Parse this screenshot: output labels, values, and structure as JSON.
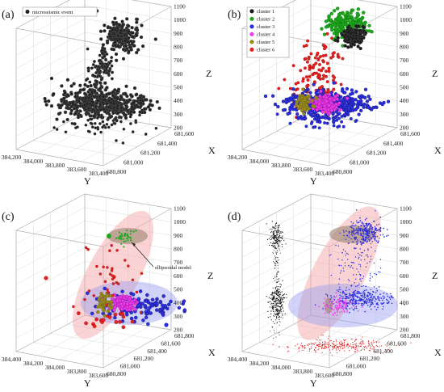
{
  "chart_data": [
    {
      "panel": "(a)",
      "type": "scatter",
      "z_axis": {
        "label": "Z",
        "ticks": [
          "200",
          "300",
          "400",
          "500",
          "600",
          "700",
          "800",
          "900",
          "1000",
          "1100"
        ]
      },
      "x_axis": {
        "label": "X",
        "ticks": [
          "681,600",
          "681,400",
          "681,200",
          "681,000",
          "680,800"
        ]
      },
      "y_axis": {
        "label": "Y",
        "ticks": [
          "384,200",
          "384,000",
          "383,800",
          "383,600",
          "383,400"
        ]
      },
      "legend": {
        "placement": "top-left",
        "entries": [
          {
            "label": "microseismic event",
            "color": "#222222"
          }
        ]
      },
      "series": [
        {
          "name": "microseismic event",
          "color": "#222222",
          "clusters": [
            {
              "x": 681200,
              "y": 383850,
              "z": 980,
              "n": 260
            },
            {
              "x": 681200,
              "y": 383860,
              "z": 800,
              "n": 140
            },
            {
              "x": 681150,
              "y": 383900,
              "z": 440,
              "n": 420
            }
          ]
        }
      ]
    },
    {
      "panel": "(b)",
      "type": "scatter",
      "z_axis": {
        "label": "Z",
        "ticks": [
          "200",
          "300",
          "400",
          "500",
          "600",
          "700",
          "800",
          "900",
          "1000",
          "1100"
        ]
      },
      "x_axis": {
        "label": "X",
        "ticks": [
          "681,600",
          "681,400",
          "681,200",
          "681,000",
          "680,800"
        ]
      },
      "y_axis": {
        "label": "Y",
        "ticks": [
          "384,200",
          "384,000",
          "383,800",
          "383,600",
          "383,400"
        ]
      },
      "legend": {
        "placement": "top-left",
        "entries": [
          {
            "label": "cluster 1",
            "color": "#1a1a1a"
          },
          {
            "label": "cluster 2",
            "color": "#1fa81f"
          },
          {
            "label": "cluster 3",
            "color": "#2a2ee0"
          },
          {
            "label": "cluster 4",
            "color": "#e83ee8"
          },
          {
            "label": "cluster 5",
            "color": "#9a8a10"
          },
          {
            "label": "cluster 6",
            "color": "#e32222"
          }
        ]
      },
      "series": [
        {
          "name": "cluster 1",
          "color": "#1a1a1a",
          "z_range": [
            940,
            1020
          ]
        },
        {
          "name": "cluster 2",
          "color": "#1fa81f",
          "z_range": [
            960,
            1060
          ]
        },
        {
          "name": "cluster 3",
          "color": "#2a2ee0",
          "z_range": [
            380,
            500
          ]
        },
        {
          "name": "cluster 4",
          "color": "#e83ee8",
          "z_range": [
            420,
            480
          ]
        },
        {
          "name": "cluster 5",
          "color": "#9a8a10",
          "z_range": [
            400,
            480
          ]
        },
        {
          "name": "cluster 6",
          "color": "#e32222",
          "z_range": [
            500,
            900
          ]
        }
      ]
    },
    {
      "panel": "(c)",
      "type": "scatter",
      "z_axis": {
        "label": "Z",
        "ticks": [
          "200",
          "300",
          "400",
          "500",
          "600",
          "700",
          "800",
          "900",
          "1000",
          "1100"
        ]
      },
      "x_axis": {
        "label": "X",
        "ticks": [
          "681,800",
          "681,600",
          "681,400",
          "681,200",
          "681,000",
          "680,800"
        ]
      },
      "y_axis": {
        "label": "Y",
        "ticks": [
          "384,400",
          "384,200",
          "384,000",
          "383,800",
          "383,600"
        ]
      },
      "annotation": "ellipsoidal model"
    },
    {
      "panel": "(d)",
      "type": "scatter",
      "z_axis": {
        "label": "Z",
        "ticks": [
          "200",
          "300",
          "400",
          "500",
          "600",
          "700",
          "800",
          "900",
          "1000",
          "1100"
        ]
      },
      "x_axis": {
        "label": "X",
        "ticks": [
          "681,800",
          "681,600",
          "681,400",
          "681,200",
          "681,000",
          "680,800"
        ]
      },
      "y_axis": {
        "label": "Y",
        "ticks": [
          "384,400",
          "384,200",
          "384,000",
          "383,800",
          "383,600"
        ]
      }
    }
  ]
}
